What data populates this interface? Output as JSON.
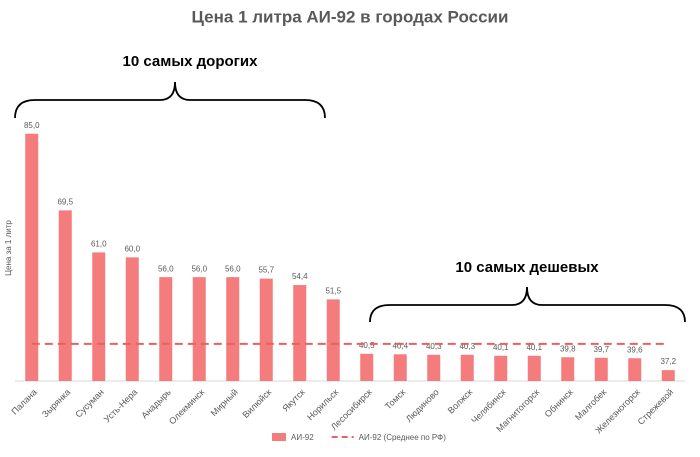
{
  "chart_data": {
    "type": "bar",
    "title": "Цена 1 литра АИ-92 в городах России",
    "y_label": "Цена за 1 литр",
    "annotations": [
      "10 самых дорогих",
      "10 самых дешевых"
    ],
    "categories": [
      "Палана",
      "Зырянка",
      "Сусуман",
      "Усть-Нера",
      "Анадырь",
      "Олекминск",
      "Мирный",
      "Вилюйск",
      "Якутск",
      "Норильск",
      "Лесосибирск",
      "Томск",
      "Людиново",
      "Волжск",
      "Челябинск",
      "Магнитогорск",
      "Обнинск",
      "Малгобек",
      "Железногорск",
      "Стрежевой"
    ],
    "series": [
      {
        "name": "АИ-92",
        "color": "#f47c7c",
        "values": [
          85.0,
          69.5,
          61.0,
          60.0,
          56.0,
          56.0,
          56.0,
          55.7,
          54.4,
          51.5,
          40.5,
          40.4,
          40.3,
          40.3,
          40.1,
          40.1,
          39.8,
          39.7,
          39.6,
          37.2
        ],
        "value_labels": [
          "85,0",
          "69,5",
          "61,0",
          "60,0",
          "56,0",
          "56,0",
          "56,0",
          "55,7",
          "54,4",
          "51,5",
          "40,5",
          "40,4",
          "40,3",
          "40,3",
          "40,1",
          "40,1",
          "39,8",
          "39,7",
          "39,6",
          "37,2"
        ]
      },
      {
        "name": "АИ-92 (Среднее по РФ)",
        "color": "#e8605f",
        "style": "dashed",
        "values": [
          42.5,
          42.5,
          42.5,
          42.5,
          42.5,
          42.5,
          42.5,
          42.5,
          42.5,
          42.5,
          42.5,
          42.5,
          42.5,
          42.5,
          42.5,
          42.5,
          42.5,
          42.5,
          42.5,
          42.5
        ]
      }
    ],
    "ylim": [
      35,
      90
    ],
    "grid": false
  }
}
